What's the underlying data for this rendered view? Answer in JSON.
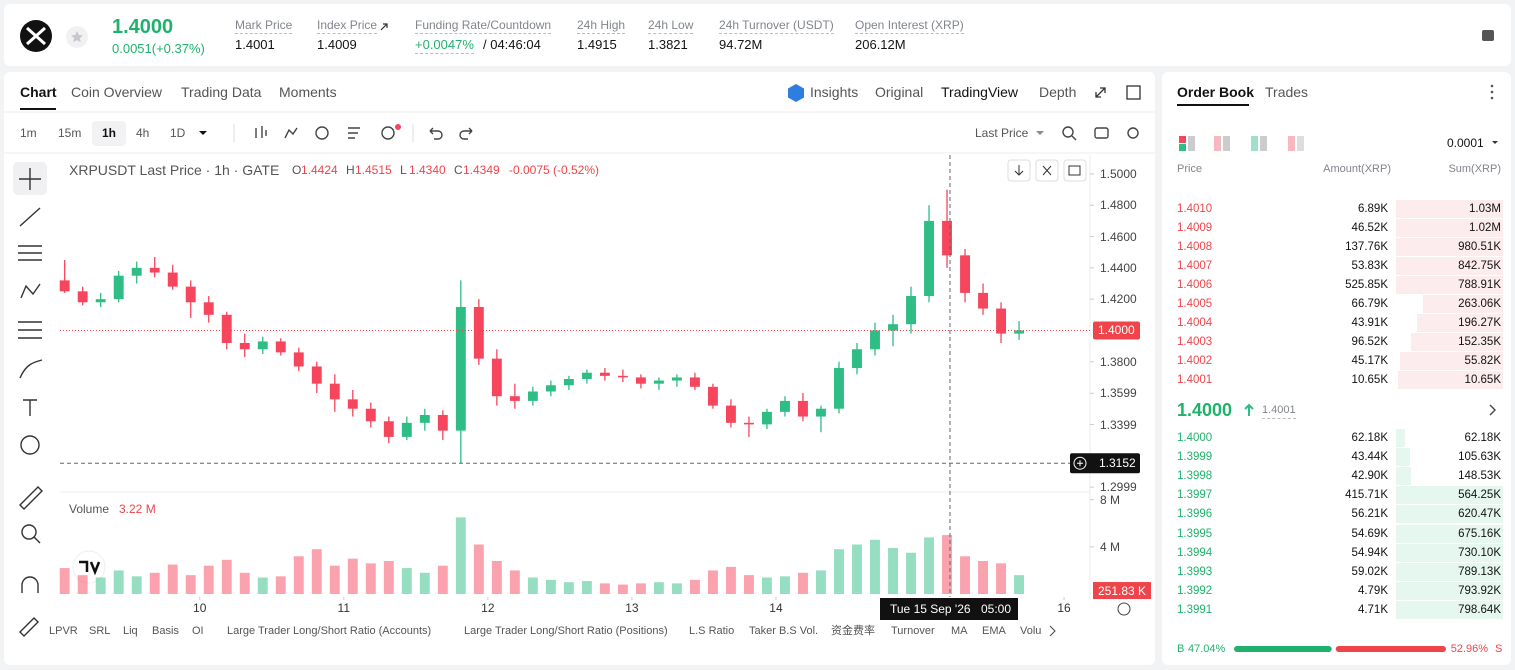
{
  "header": {
    "symbol_price": "1.4000",
    "change": "0.0051(+0.37%)",
    "stats": [
      {
        "label": "Mark Price",
        "value": "1.4001"
      },
      {
        "label": "Index Price",
        "value": "1.4009"
      },
      {
        "label": "Funding Rate/Countdown",
        "value": "+0.0047%",
        "extra": "/ 04:46:04"
      },
      {
        "label": "24h High",
        "value": "1.4915"
      },
      {
        "label": "24h Low",
        "value": "1.3821"
      },
      {
        "label": "24h Turnover (USDT)",
        "value": "94.72M"
      },
      {
        "label": "Open Interest (XRP)",
        "value": "206.12M"
      }
    ]
  },
  "tabs": [
    "Chart",
    "Coin Overview",
    "Trading Data",
    "Moments"
  ],
  "view_tabs": [
    "Insights",
    "Original",
    "TradingView",
    "Depth"
  ],
  "intervals": [
    "1m",
    "15m",
    "1h",
    "4h",
    "1D"
  ],
  "price_source": "Last Price",
  "chart_data": {
    "type": "candlestick",
    "legend": "XRPUSDT Last Price · 1h · GATE",
    "ohlc": [
      [
        "O",
        "1.4424"
      ],
      [
        "H",
        "1.4515"
      ],
      [
        "L",
        "1.4340"
      ],
      [
        "C",
        "1.4349"
      ]
    ],
    "change": "-0.0075 (-0.52%)",
    "x": [
      9.0625,
      9.1875,
      9.3125,
      9.4375,
      9.5625,
      9.6875,
      9.8125,
      9.9375,
      10.0625,
      10.1875,
      10.3125,
      10.4375,
      10.5625,
      10.6875,
      10.8125,
      10.9375,
      11.0625,
      11.1875,
      11.3125,
      11.4375,
      11.5625,
      11.6875,
      11.8125,
      11.9375,
      12.0625,
      12.1875,
      12.3125,
      12.4375,
      12.5625,
      12.6875,
      12.8125,
      12.9375,
      13.0625,
      13.1875,
      13.3125,
      13.4375,
      13.5625,
      13.6875,
      13.8125,
      13.9375,
      14.0625,
      14.1875,
      14.3125,
      14.4375,
      14.5625,
      14.6875,
      14.8125,
      14.9375,
      15.0625,
      15.1875,
      15.3125,
      15.4375,
      15.5625,
      15.6875
    ],
    "open": [
      1.432,
      1.425,
      1.418,
      1.42,
      1.435,
      1.44,
      1.437,
      1.428,
      1.418,
      1.41,
      1.392,
      1.388,
      1.393,
      1.386,
      1.377,
      1.366,
      1.356,
      1.35,
      1.342,
      1.332,
      1.341,
      1.346,
      1.336,
      1.415,
      1.382,
      1.358,
      1.355,
      1.361,
      1.365,
      1.369,
      1.373,
      1.371,
      1.37,
      1.366,
      1.368,
      1.37,
      1.364,
      1.352,
      1.341,
      1.34,
      1.348,
      1.355,
      1.345,
      1.35,
      1.376,
      1.388,
      1.4,
      1.404,
      1.422,
      1.47,
      1.448,
      1.424,
      1.414,
      1.398
    ],
    "high": [
      1.445,
      1.428,
      1.424,
      1.438,
      1.444,
      1.447,
      1.442,
      1.432,
      1.422,
      1.412,
      1.398,
      1.396,
      1.395,
      1.389,
      1.38,
      1.372,
      1.362,
      1.354,
      1.345,
      1.345,
      1.35,
      1.349,
      1.432,
      1.42,
      1.388,
      1.366,
      1.364,
      1.368,
      1.371,
      1.375,
      1.376,
      1.375,
      1.372,
      1.37,
      1.372,
      1.373,
      1.366,
      1.356,
      1.345,
      1.35,
      1.358,
      1.36,
      1.352,
      1.38,
      1.392,
      1.405,
      1.41,
      1.428,
      1.48,
      1.49,
      1.452,
      1.43,
      1.418,
      1.406
    ],
    "low": [
      1.424,
      1.416,
      1.415,
      1.418,
      1.43,
      1.434,
      1.426,
      1.408,
      1.405,
      1.388,
      1.383,
      1.385,
      1.384,
      1.374,
      1.36,
      1.348,
      1.345,
      1.338,
      1.328,
      1.33,
      1.336,
      1.33,
      1.3152,
      1.378,
      1.352,
      1.35,
      1.352,
      1.358,
      1.362,
      1.366,
      1.368,
      1.367,
      1.363,
      1.362,
      1.364,
      1.362,
      1.35,
      1.338,
      1.332,
      1.337,
      1.345,
      1.342,
      1.335,
      1.347,
      1.372,
      1.384,
      1.39,
      1.398,
      1.418,
      1.44,
      1.418,
      1.41,
      1.392,
      1.394
    ],
    "close": [
      1.425,
      1.418,
      1.42,
      1.435,
      1.44,
      1.437,
      1.428,
      1.418,
      1.41,
      1.392,
      1.388,
      1.393,
      1.386,
      1.377,
      1.366,
      1.356,
      1.35,
      1.342,
      1.332,
      1.341,
      1.346,
      1.336,
      1.415,
      1.382,
      1.358,
      1.355,
      1.361,
      1.365,
      1.369,
      1.373,
      1.371,
      1.37,
      1.366,
      1.368,
      1.37,
      1.364,
      1.352,
      1.341,
      1.34,
      1.348,
      1.355,
      1.345,
      1.35,
      1.376,
      1.388,
      1.4,
      1.404,
      1.422,
      1.47,
      1.448,
      1.424,
      1.414,
      1.398,
      1.4
    ],
    "volume": [
      2.2,
      1.6,
      1.4,
      2.0,
      1.5,
      1.8,
      2.5,
      1.6,
      2.4,
      2.9,
      1.8,
      1.4,
      1.5,
      3.2,
      3.8,
      2.4,
      3.0,
      2.6,
      2.8,
      2.2,
      1.8,
      2.4,
      6.5,
      4.2,
      2.8,
      2.0,
      1.4,
      1.2,
      1.0,
      1.1,
      0.9,
      0.8,
      0.9,
      1.0,
      0.9,
      1.2,
      2.0,
      2.3,
      1.6,
      1.4,
      1.5,
      1.8,
      2.0,
      3.8,
      4.2,
      4.6,
      3.9,
      3.5,
      4.8,
      5.0,
      3.2,
      2.8,
      2.6,
      1.6
    ],
    "up_color": "#2ebd85",
    "down_color": "#f6465d",
    "xlim": [
      9.03,
      16.18
    ],
    "xticks": [
      10,
      11,
      12,
      13,
      14,
      16
    ],
    "ylim": [
      1.2968,
      1.5121
    ],
    "yticks": [
      {
        "value": 1.5,
        "label": "1.5000"
      },
      {
        "value": 1.48,
        "label": "1.4800"
      },
      {
        "value": 1.46,
        "label": "1.4600"
      },
      {
        "value": 1.44,
        "label": "1.4400"
      },
      {
        "value": 1.42,
        "label": "1.4200"
      },
      {
        "value": 1.38,
        "label": "1.3800"
      },
      {
        "value": 1.3599,
        "label": "1.3599"
      },
      {
        "value": 1.3399,
        "label": "1.3399"
      },
      {
        "value": 1.2999,
        "label": "1.2999"
      }
    ],
    "last_price": {
      "value": 1.4,
      "label": "1.4000"
    },
    "crosshair": {
      "x": {
        "value": 15.208,
        "label": "Tue 15 Sep '26"
      },
      "time": "05:00",
      "y": 1.3152
    },
    "volume_title": "Volume",
    "volume_last": "3.22 M",
    "volume_ylim": [
      0,
      8.4
    ],
    "volume_yticks": [
      {
        "value": 8,
        "label": "8 M"
      },
      {
        "value": 4,
        "label": "4 M"
      }
    ],
    "volume_marker": {
      "value": 0.25183,
      "label": "251.83 K"
    }
  },
  "indicators": [
    "LPVR",
    "SRL",
    "Liq",
    "Basis",
    "OI",
    "Large Trader Long/Short Ratio (Accounts)",
    "Large Trader Long/Short Ratio (Positions)",
    "L.S Ratio",
    "Taker B.S Vol.",
    "资金费率",
    "Turnover",
    "MA",
    "EMA",
    "Volu"
  ],
  "order_book": {
    "tabs": [
      "Order Book",
      "Trades"
    ],
    "precision": "0.0001",
    "columns": [
      "Price",
      "Amount(XRP)",
      "Sum(XRP)"
    ],
    "asks": [
      [
        "1.4010",
        "6.89K",
        "1.03M"
      ],
      [
        "1.4009",
        "46.52K",
        "1.02M"
      ],
      [
        "1.4008",
        "137.76K",
        "980.51K"
      ],
      [
        "1.4007",
        "53.83K",
        "842.75K"
      ],
      [
        "1.4006",
        "525.85K",
        "788.91K"
      ],
      [
        "1.4005",
        "66.79K",
        "263.06K"
      ],
      [
        "1.4004",
        "43.91K",
        "196.27K"
      ],
      [
        "1.4003",
        "96.52K",
        "152.35K"
      ],
      [
        "1.4002",
        "45.17K",
        "55.82K"
      ],
      [
        "1.4001",
        "10.65K",
        "10.65K"
      ]
    ],
    "mid_price": "1.4000",
    "mark_price": "1.4001",
    "bids": [
      [
        "1.4000",
        "62.18K",
        "62.18K"
      ],
      [
        "1.3999",
        "43.44K",
        "105.63K"
      ],
      [
        "1.3998",
        "42.90K",
        "148.53K"
      ],
      [
        "1.3997",
        "415.71K",
        "564.25K"
      ],
      [
        "1.3996",
        "56.21K",
        "620.47K"
      ],
      [
        "1.3995",
        "54.69K",
        "675.16K"
      ],
      [
        "1.3994",
        "54.94K",
        "730.10K"
      ],
      [
        "1.3993",
        "59.02K",
        "789.13K"
      ],
      [
        "1.3992",
        "4.79K",
        "793.92K"
      ],
      [
        "1.3991",
        "4.71K",
        "798.64K"
      ]
    ],
    "buy": {
      "label": "B",
      "ratio": 47.04,
      "ratio_label": "47.04%"
    },
    "sell": {
      "label": "S",
      "ratio": 52.96,
      "ratio_label": "52.96%"
    }
  }
}
